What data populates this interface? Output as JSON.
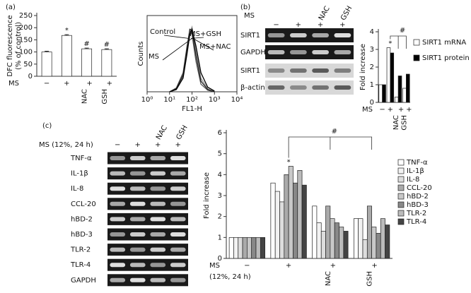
{
  "panel_labels": [
    "(a)",
    "(b)",
    "(c)"
  ],
  "chart_data": [
    {
      "type": "bar",
      "ylabel": [
        "DFC fluorescence",
        "(% of control)"
      ],
      "x_row_label": [
        "MS"
      ],
      "categories": [
        "−",
        "+",
        "+",
        "+"
      ],
      "treatments": [
        null,
        null,
        "NAC",
        "GSH"
      ],
      "values": [
        100,
        168,
        113,
        110
      ],
      "errors": [
        3,
        3,
        3,
        3
      ],
      "annotations": [
        null,
        "*",
        "#",
        "#"
      ],
      "color": "#ffffff",
      "ylim": [
        0,
        250
      ],
      "yticks": [
        0,
        50,
        100,
        150,
        200,
        250
      ]
    },
    {
      "type": "line",
      "xlog": true,
      "xlabel": "FL1-H",
      "ylabel": [
        "Counts"
      ],
      "x": [
        10,
        20,
        40,
        60,
        80,
        100,
        150,
        250,
        500,
        1000
      ],
      "xlim": [
        1,
        10000
      ],
      "xticks": [
        {
          "value": 1,
          "label": "10⁰"
        },
        {
          "value": 10,
          "label": "10¹"
        },
        {
          "value": 100,
          "label": "10²"
        },
        {
          "value": 1000,
          "label": "10³"
        },
        {
          "value": 10000,
          "label": "10⁴"
        }
      ],
      "ylim": [
        0,
        100
      ],
      "yticks": [],
      "series": [
        {
          "name": "Control",
          "color": "#555555",
          "values": [
            0,
            5,
            25,
            60,
            80,
            75,
            40,
            10,
            2,
            0
          ]
        },
        {
          "name": "MS",
          "color": "#999999",
          "values": [
            0,
            3,
            20,
            55,
            78,
            85,
            55,
            18,
            4,
            0
          ]
        },
        {
          "name": "MS+GSH",
          "color": "#222222",
          "values": [
            0,
            4,
            22,
            58,
            82,
            80,
            48,
            14,
            3,
            0
          ]
        },
        {
          "name": "MS+NAC",
          "color": "#000000",
          "values": [
            0,
            3,
            18,
            50,
            75,
            82,
            60,
            25,
            6,
            1
          ]
        }
      ]
    },
    {
      "type": "bar",
      "ylabel": [
        "Fold increase"
      ],
      "x_row_label": [
        "MS"
      ],
      "categories": [
        "−",
        "+",
        "+",
        "+"
      ],
      "treatments": [
        null,
        null,
        "NAC",
        "GSH"
      ],
      "ylim": [
        0,
        4
      ],
      "yticks": [
        0,
        1,
        2,
        3,
        4
      ],
      "annotations": [
        null,
        "*",
        null,
        null
      ],
      "bracket_label": "#",
      "series": [
        {
          "name": "SIRT1 mRNA",
          "color": "#ffffff",
          "values": [
            1,
            3.1,
            0.3,
            0.8
          ]
        },
        {
          "name": "SIRT1 protein",
          "color": "#000000",
          "values": [
            1,
            2.8,
            1.5,
            1.6
          ]
        }
      ]
    },
    {
      "type": "bar",
      "ylabel": [
        "Fold increase"
      ],
      "x_row_label": [
        "MS",
        "(12%,  24 h)"
      ],
      "categories": [
        "−",
        "+",
        "+",
        "+"
      ],
      "treatments": [
        null,
        null,
        "NAC",
        "GSH"
      ],
      "ylim": [
        0,
        6
      ],
      "yticks": [
        0,
        1,
        2,
        3,
        4,
        5,
        6
      ],
      "annotations": [
        null,
        "*",
        null,
        null
      ],
      "bracket_label": "#",
      "series": [
        {
          "name": "TNF-α",
          "color": "#ffffff",
          "values": [
            1,
            3.6,
            2.5,
            1.9
          ]
        },
        {
          "name": "IL-1β",
          "color": "#f2f2f2",
          "values": [
            1,
            3.2,
            1.7,
            1.9
          ]
        },
        {
          "name": "IL-8",
          "color": "#dddddd",
          "values": [
            1,
            2.7,
            1.3,
            0.9
          ]
        },
        {
          "name": "CCL-20",
          "color": "#aaaaaa",
          "values": [
            1,
            4.0,
            2.5,
            2.5
          ]
        },
        {
          "name": "hBD-2",
          "color": "#c8c8c8",
          "values": [
            1,
            4.4,
            1.9,
            1.5
          ]
        },
        {
          "name": "hBD-3",
          "color": "#888888",
          "values": [
            1,
            3.6,
            1.7,
            1.2
          ]
        },
        {
          "name": "TLR-2",
          "color": "#bbbbbb",
          "values": [
            1,
            4.2,
            1.5,
            1.9
          ]
        },
        {
          "name": "TLR-4",
          "color": "#444444",
          "values": [
            1,
            3.5,
            1.3,
            1.6
          ]
        }
      ]
    }
  ],
  "blots": [
    {
      "header": "MS",
      "signs": [
        "−",
        "+",
        "+",
        "+"
      ],
      "treatments": [
        null,
        null,
        "NAC",
        "GSH"
      ],
      "rows": [
        "SIRT1",
        "GAPDH",
        "SIRT1",
        "β-actin"
      ]
    },
    {
      "header": "MS (12%,  24 h)",
      "signs": [
        "−",
        "+",
        "+",
        "+"
      ],
      "treatments": [
        null,
        null,
        "NAC",
        "GSH"
      ],
      "rows": [
        "TNF-α",
        "IL-1β",
        "IL-8",
        "CCL-20",
        "hBD-2",
        "hBD-3",
        "TLR-2",
        "TLR-4",
        "GAPDH"
      ]
    }
  ]
}
